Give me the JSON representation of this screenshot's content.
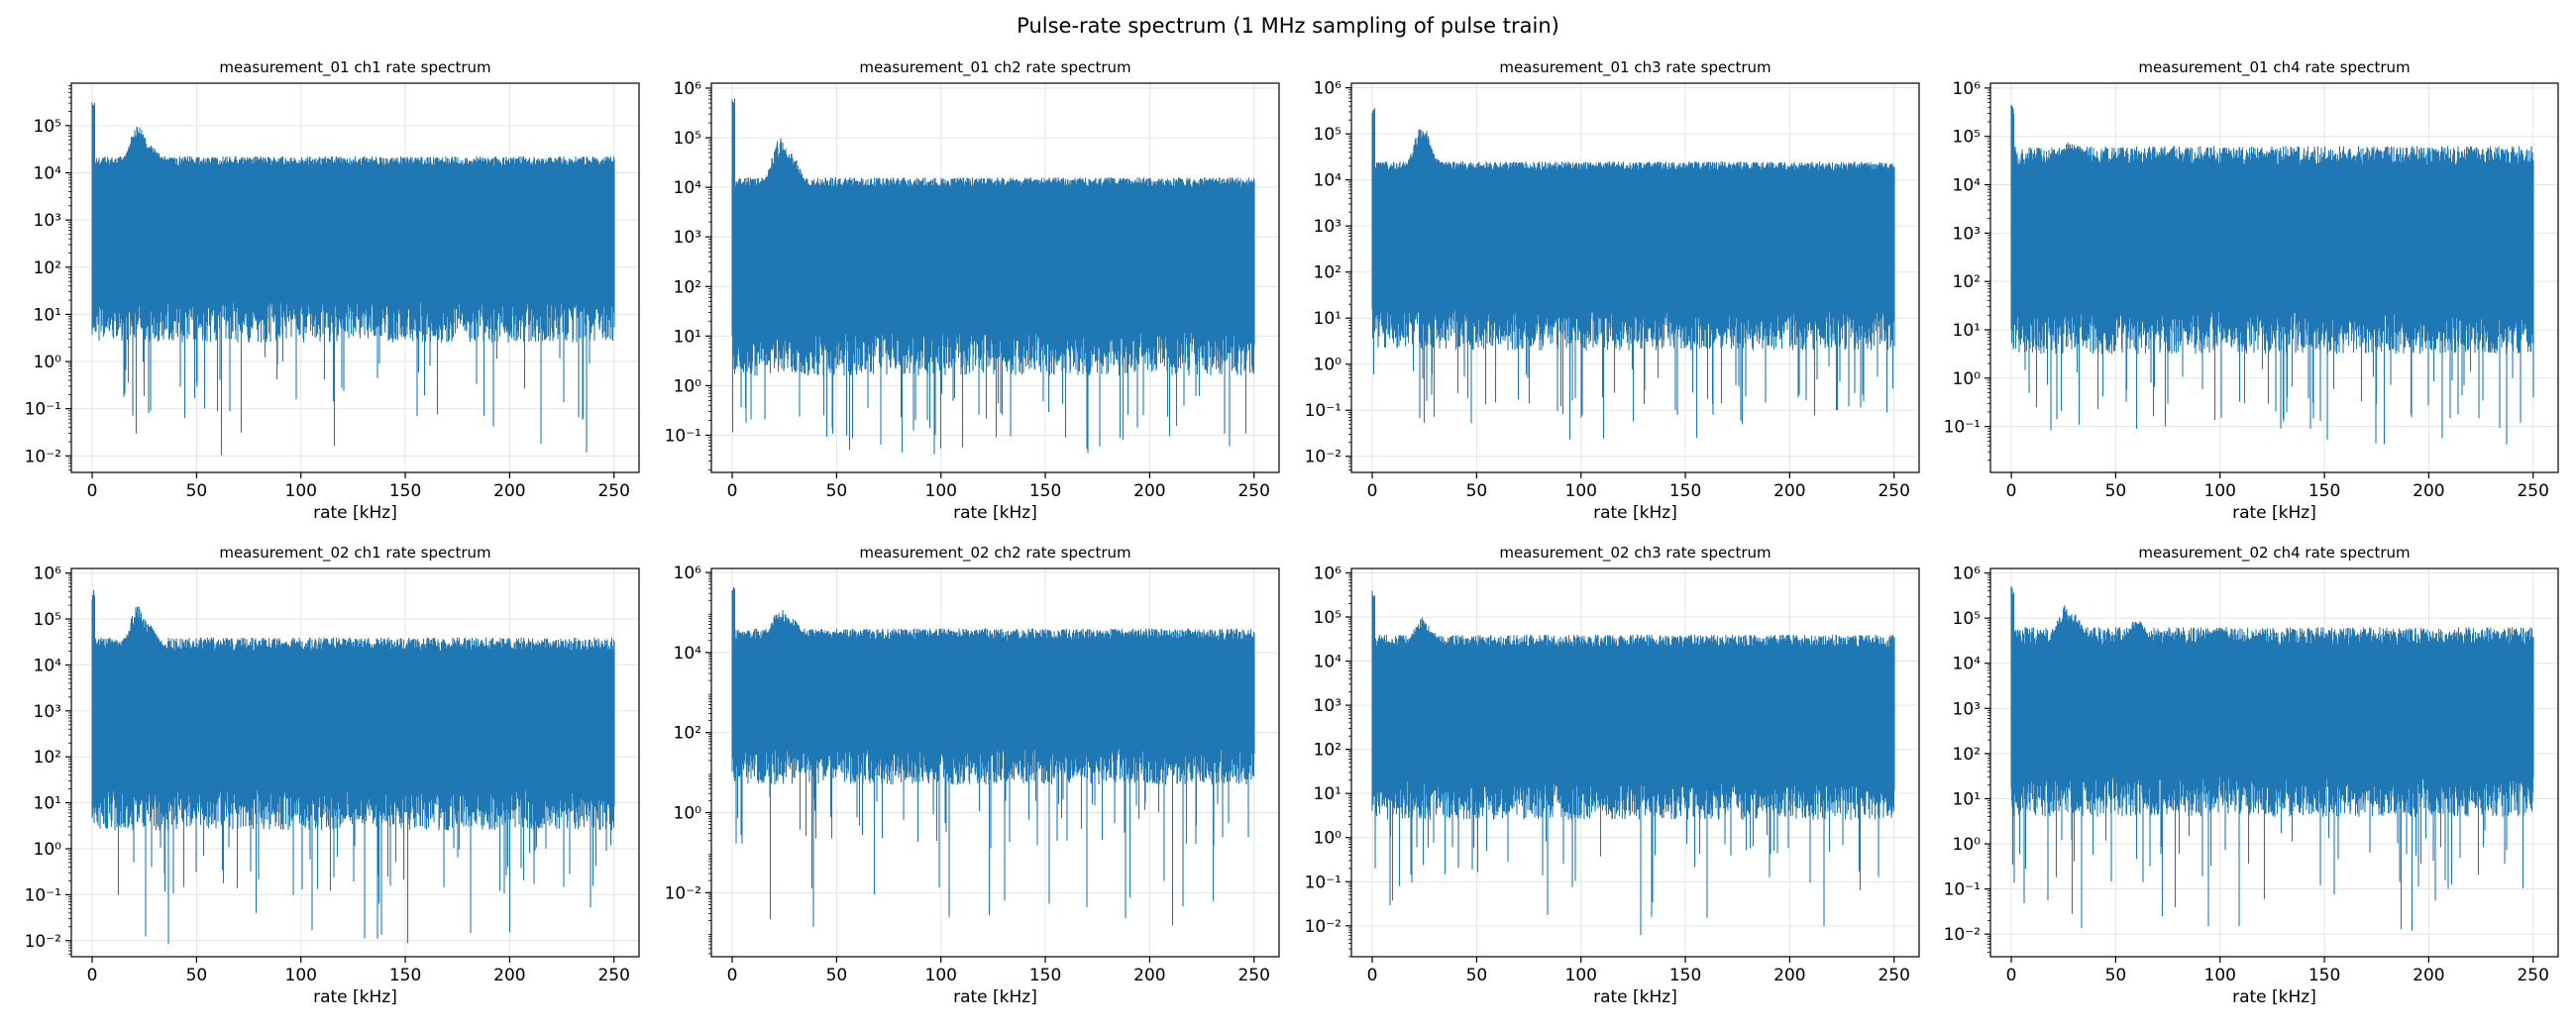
{
  "figure": {
    "title": "Pulse-rate spectrum (1 MHz sampling of pulse train)"
  },
  "colors": {
    "series": "#1f77b4",
    "grid": "#e3e3e3",
    "axis": "#000000"
  },
  "chart_data": [
    {
      "type": "line",
      "title": "measurement_01 ch1 rate spectrum",
      "xlabel": "rate [kHz]",
      "ylabel": "",
      "xlim": [
        -10,
        262
      ],
      "ylog": true,
      "ylim_exp": [
        -2.35,
        5.9
      ],
      "ytick_exp": [
        -2,
        -1,
        0,
        1,
        2,
        3,
        4,
        5
      ],
      "xticks": [
        0,
        50,
        100,
        150,
        200,
        250
      ],
      "grid": true,
      "envelope": {
        "top_exp": 4.15,
        "bottom_exp": 1.3,
        "band_max_exp": 4.35,
        "dip_min_exp": -2.0,
        "peak_exp": 5.55,
        "bumps": [
          [
            22,
            5.0
          ],
          [
            28,
            4.6
          ]
        ]
      }
    },
    {
      "type": "line",
      "title": "measurement_01 ch2 rate spectrum",
      "xlabel": "rate [kHz]",
      "ylabel": "",
      "xlim": [
        -10,
        262
      ],
      "ylog": true,
      "ylim_exp": [
        -1.75,
        6.1
      ],
      "ytick_exp": [
        -1,
        0,
        1,
        2,
        3,
        4,
        5,
        6
      ],
      "xticks": [
        0,
        50,
        100,
        150,
        200,
        250
      ],
      "grid": true,
      "envelope": {
        "top_exp": 4.0,
        "bottom_exp": 1.1,
        "band_max_exp": 4.2,
        "dip_min_exp": -1.3,
        "peak_exp": 5.8,
        "bumps": [
          [
            23,
            5.0
          ],
          [
            28,
            4.7
          ]
        ]
      }
    },
    {
      "type": "line",
      "title": "measurement_01 ch3 rate spectrum",
      "xlabel": "rate [kHz]",
      "ylabel": "",
      "xlim": [
        -10,
        262
      ],
      "ylog": true,
      "ylim_exp": [
        -2.35,
        6.1
      ],
      "ytick_exp": [
        -2,
        -1,
        0,
        1,
        2,
        3,
        4,
        5,
        6
      ],
      "xticks": [
        0,
        50,
        100,
        150,
        200,
        250
      ],
      "grid": true,
      "envelope": {
        "top_exp": 4.2,
        "bottom_exp": 1.2,
        "band_max_exp": 4.4,
        "dip_min_exp": -1.8,
        "peak_exp": 5.7,
        "bumps": [
          [
            24,
            5.2
          ],
          [
            28,
            4.6
          ]
        ]
      }
    },
    {
      "type": "line",
      "title": "measurement_01 ch4 rate spectrum",
      "xlabel": "rate [kHz]",
      "ylabel": "",
      "xlim": [
        -10,
        262
      ],
      "ylog": true,
      "ylim_exp": [
        -1.95,
        6.1
      ],
      "ytick_exp": [
        -1,
        0,
        1,
        2,
        3,
        4,
        5,
        6
      ],
      "xticks": [
        0,
        50,
        100,
        150,
        200,
        250
      ],
      "grid": true,
      "envelope": {
        "top_exp": 4.4,
        "bottom_exp": 1.4,
        "band_max_exp": 4.8,
        "dip_min_exp": -1.5,
        "peak_exp": 5.7,
        "bumps": [
          [
            28,
            4.9
          ],
          [
            32,
            4.8
          ],
          [
            75,
            4.7
          ],
          [
            120,
            4.6
          ],
          [
            160,
            4.6
          ]
        ]
      }
    },
    {
      "type": "line",
      "title": "measurement_02 ch1 rate spectrum",
      "xlabel": "rate [kHz]",
      "ylabel": "",
      "xlim": [
        -10,
        262
      ],
      "ylog": true,
      "ylim_exp": [
        -2.35,
        6.1
      ],
      "ytick_exp": [
        -2,
        -1,
        0,
        1,
        2,
        3,
        4,
        5,
        6
      ],
      "xticks": [
        0,
        50,
        100,
        150,
        200,
        250
      ],
      "grid": true,
      "envelope": {
        "top_exp": 4.3,
        "bottom_exp": 1.3,
        "band_max_exp": 4.6,
        "dip_min_exp": -2.1,
        "peak_exp": 5.65,
        "bumps": [
          [
            22,
            5.3
          ],
          [
            27,
            4.9
          ]
        ]
      }
    },
    {
      "type": "line",
      "title": "measurement_02 ch2 rate spectrum",
      "xlabel": "rate [kHz]",
      "ylabel": "",
      "xlim": [
        -10,
        262
      ],
      "ylog": true,
      "ylim_exp": [
        -3.6,
        6.1
      ],
      "ytick_exp": [
        -2,
        0,
        2,
        4,
        6
      ],
      "xticks": [
        0,
        50,
        100,
        150,
        200,
        250
      ],
      "grid": true,
      "envelope": {
        "top_exp": 4.3,
        "bottom_exp": 1.6,
        "band_max_exp": 4.6,
        "dip_min_exp": -2.9,
        "peak_exp": 5.65,
        "bumps": [
          [
            23,
            5.1
          ],
          [
            28,
            4.9
          ]
        ]
      }
    },
    {
      "type": "line",
      "title": "measurement_02 ch3 rate spectrum",
      "xlabel": "rate [kHz]",
      "ylabel": "",
      "xlim": [
        -10,
        262
      ],
      "ylog": true,
      "ylim_exp": [
        -2.7,
        6.1
      ],
      "ytick_exp": [
        -2,
        -1,
        0,
        1,
        2,
        3,
        4,
        5,
        6
      ],
      "xticks": [
        0,
        50,
        100,
        150,
        200,
        250
      ],
      "grid": true,
      "envelope": {
        "top_exp": 4.3,
        "bottom_exp": 1.3,
        "band_max_exp": 4.6,
        "dip_min_exp": -2.3,
        "peak_exp": 5.65,
        "bumps": [
          [
            24,
            5.0
          ],
          [
            28,
            4.7
          ]
        ]
      }
    },
    {
      "type": "line",
      "title": "measurement_02 ch4 rate spectrum",
      "xlabel": "rate [kHz]",
      "ylabel": "",
      "xlim": [
        -10,
        262
      ],
      "ylog": true,
      "ylim_exp": [
        -2.5,
        6.1
      ],
      "ytick_exp": [
        -2,
        -1,
        0,
        1,
        2,
        3,
        4,
        5,
        6
      ],
      "xticks": [
        0,
        50,
        100,
        150,
        200,
        250
      ],
      "grid": true,
      "envelope": {
        "top_exp": 4.4,
        "bottom_exp": 1.5,
        "band_max_exp": 4.8,
        "dip_min_exp": -2.0,
        "peak_exp": 5.75,
        "bumps": [
          [
            26,
            5.3
          ],
          [
            30,
            5.1
          ],
          [
            60,
            5.0
          ],
          [
            100,
            4.8
          ]
        ]
      }
    }
  ]
}
